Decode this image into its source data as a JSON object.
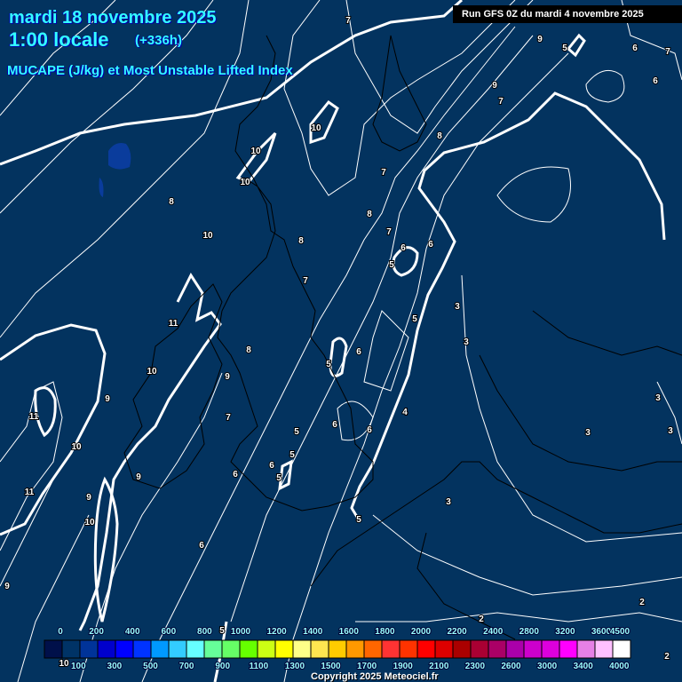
{
  "header": {
    "date": "mardi 18 novembre 2025",
    "time": "1:00 locale",
    "lead": "(+336h)",
    "parameter": "MUCAPE (J/kg) et Most Unstable Lifted Index",
    "run": "Run GFS 0Z du mardi 4 novembre 2025"
  },
  "map": {
    "background_color": "#03335f",
    "contour_color": "#ffffff",
    "coastline_color": "#000000",
    "lifted_index_labels": [
      "7",
      "9",
      "5",
      "6",
      "7",
      "6",
      "9",
      "7",
      "10",
      "8",
      "10",
      "10",
      "7",
      "8",
      "8",
      "10",
      "7",
      "6",
      "6",
      "8",
      "5",
      "7",
      "3",
      "5",
      "11",
      "3",
      "8",
      "5",
      "6",
      "10",
      "9",
      "9",
      "3",
      "11",
      "4",
      "7",
      "6",
      "6",
      "5",
      "3",
      "3",
      "10",
      "5",
      "6",
      "9",
      "6",
      "5",
      "11",
      "9",
      "3",
      "5",
      "10",
      "6",
      "9",
      "2",
      "2",
      "5",
      "10",
      "2"
    ]
  },
  "legend": {
    "labels": [
      "0",
      "100",
      "200",
      "300",
      "400",
      "500",
      "600",
      "700",
      "800",
      "900",
      "1000",
      "1100",
      "1200",
      "1300",
      "1400",
      "1500",
      "1600",
      "1700",
      "1800",
      "1900",
      "2000",
      "2100",
      "2200",
      "2300",
      "2400",
      "2600",
      "2800",
      "3000",
      "3200",
      "3400",
      "3600",
      "4000",
      "4500"
    ],
    "colors": [
      "#00104a",
      "#003366",
      "#003399",
      "#0000cc",
      "#0000ff",
      "#0033ff",
      "#0099ff",
      "#33ccff",
      "#66ffff",
      "#66ff99",
      "#66ff66",
      "#66ff00",
      "#ccff14",
      "#ffff00",
      "#ffff88",
      "#ffe650",
      "#ffcc00",
      "#ff9900",
      "#ff6600",
      "#ff3333",
      "#ff3300",
      "#ff0000",
      "#dd0000",
      "#aa0000",
      "#aa0033",
      "#aa0066",
      "#aa00aa",
      "#cc00cc",
      "#dd00dd",
      "#ff00ff",
      "#e680e6",
      "#ffc0ff",
      "#ffffff"
    ]
  },
  "footer": {
    "copyright": "Copyright 2025 Meteociel.fr"
  }
}
